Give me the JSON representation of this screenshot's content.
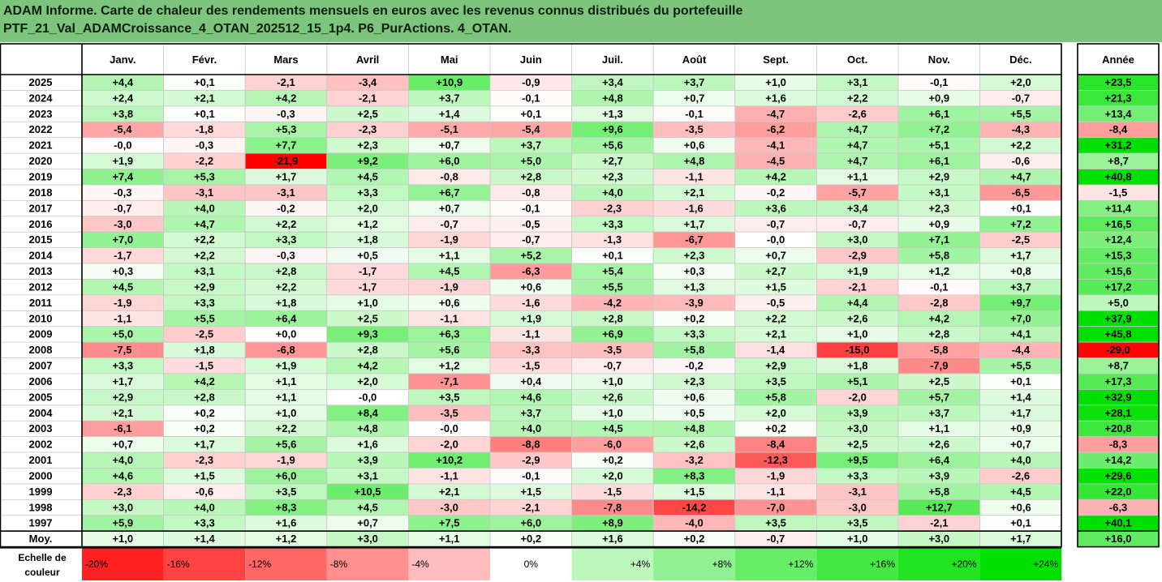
{
  "title": {
    "line1": "ADAM Informe. Carte de chaleur des rendements mensuels en euros avec les revenus connus distribués du portefeuille",
    "line2": "PTF_21_Val_ADAMCroissance_4_OTAN_202512_15_1p4. P6_PurActions. 4_OTAN."
  },
  "chart_data": {
    "type": "heatmap",
    "columns": [
      "Janv.",
      "Févr.",
      "Mars",
      "Avril",
      "Mai",
      "Juin",
      "Juil.",
      "Août",
      "Sept.",
      "Oct.",
      "Nov.",
      "Déc."
    ],
    "year_column": "Année",
    "rows": [
      {
        "label": "2025",
        "values": [
          "+4,4",
          "+0,1",
          "-2,1",
          "-3,4",
          "+10,9",
          "-0,9",
          "+3,4",
          "+3,7",
          "+1,0",
          "+3,1",
          "-0,1",
          "+2,0"
        ],
        "year": "+23,5"
      },
      {
        "label": "2024",
        "values": [
          "+2,4",
          "+2,1",
          "+4,2",
          "-2,1",
          "+3,7",
          "-0,1",
          "+4,8",
          "+0,7",
          "+1,6",
          "+2,2",
          "+0,9",
          "-0,7"
        ],
        "year": "+21,3"
      },
      {
        "label": "2023",
        "values": [
          "+3,8",
          "+0,1",
          "-0,3",
          "+2,5",
          "+1,4",
          "+0,1",
          "+1,3",
          "-0,1",
          "-4,7",
          "-2,6",
          "+6,1",
          "+5,5"
        ],
        "year": "+13,4"
      },
      {
        "label": "2022",
        "values": [
          "-5,4",
          "-1,8",
          "+5,3",
          "-2,3",
          "-5,1",
          "-5,4",
          "+9,6",
          "-3,5",
          "-6,2",
          "+4,7",
          "+7,2",
          "-4,3"
        ],
        "year": "-8,4"
      },
      {
        "label": "2021",
        "values": [
          "-0,0",
          "-0,3",
          "+7,7",
          "+2,3",
          "+0,7",
          "+3,7",
          "+5,6",
          "+0,6",
          "-4,1",
          "+4,7",
          "+5,1",
          "+2,2"
        ],
        "year": "+31,2"
      },
      {
        "label": "2020",
        "values": [
          "+1,9",
          "-2,2",
          "-21,9",
          "+9,2",
          "+6,0",
          "+5,0",
          "+2,7",
          "+4,8",
          "-4,5",
          "+4,7",
          "+6,1",
          "-0,6"
        ],
        "year": "+8,7"
      },
      {
        "label": "2019",
        "values": [
          "+7,4",
          "+5,3",
          "+1,7",
          "+4,5",
          "-0,8",
          "+2,8",
          "+2,3",
          "-1,1",
          "+4,2",
          "+1,1",
          "+2,9",
          "+4,7"
        ],
        "year": "+40,8"
      },
      {
        "label": "2018",
        "values": [
          "-0,3",
          "-3,1",
          "-3,1",
          "+3,3",
          "+6,7",
          "-0,8",
          "+4,0",
          "+2,1",
          "-0,2",
          "-5,7",
          "+3,1",
          "-6,5"
        ],
        "year": "-1,5"
      },
      {
        "label": "2017",
        "values": [
          "-0,7",
          "+4,0",
          "-0,2",
          "+2,0",
          "+0,7",
          "-0,1",
          "-2,3",
          "-1,6",
          "+3,6",
          "+3,4",
          "+2,3",
          "+0,1"
        ],
        "year": "+11,4"
      },
      {
        "label": "2016",
        "values": [
          "-3,0",
          "+4,7",
          "+2,2",
          "+1,2",
          "-0,7",
          "-0,5",
          "+3,3",
          "+1,7",
          "-0,7",
          "-0,7",
          "+0,9",
          "+7,2"
        ],
        "year": "+16,5"
      },
      {
        "label": "2015",
        "values": [
          "+7,0",
          "+2,2",
          "+3,3",
          "+1,8",
          "-1,9",
          "-0,7",
          "-1,3",
          "-6,7",
          "-0,0",
          "+3,0",
          "+7,1",
          "-2,5"
        ],
        "year": "+12,4"
      },
      {
        "label": "2014",
        "values": [
          "-1,7",
          "+2,2",
          "-0,3",
          "+0,5",
          "+1,1",
          "+5,2",
          "+0,1",
          "+2,3",
          "+0,7",
          "-2,9",
          "+5,8",
          "+1,7"
        ],
        "year": "+15,3"
      },
      {
        "label": "2013",
        "values": [
          "+0,3",
          "+3,1",
          "+2,8",
          "-1,7",
          "+4,5",
          "-6,3",
          "+5,4",
          "+0,3",
          "+2,7",
          "+1,9",
          "+1,2",
          "+0,8"
        ],
        "year": "+15,6"
      },
      {
        "label": "2012",
        "values": [
          "+4,5",
          "+2,9",
          "+2,2",
          "-1,7",
          "-1,9",
          "+0,6",
          "+5,5",
          "+1,3",
          "+1,5",
          "-2,1",
          "-0,1",
          "+3,7"
        ],
        "year": "+17,2"
      },
      {
        "label": "2011",
        "values": [
          "-1,9",
          "+3,3",
          "+1,8",
          "+1,0",
          "+0,6",
          "-1,6",
          "-4,2",
          "-3,9",
          "-0,5",
          "+4,4",
          "-2,8",
          "+9,7"
        ],
        "year": "+5,0"
      },
      {
        "label": "2010",
        "values": [
          "-1,1",
          "+5,5",
          "+6,4",
          "+2,5",
          "-1,1",
          "+1,9",
          "+2,8",
          "+0,2",
          "+2,2",
          "+2,6",
          "+4,2",
          "+7,0"
        ],
        "year": "+37,9"
      },
      {
        "label": "2009",
        "values": [
          "+5,0",
          "-2,5",
          "+0,0",
          "+9,3",
          "+6,3",
          "-1,1",
          "+6,9",
          "+3,3",
          "+2,1",
          "+1,0",
          "+2,8",
          "+4,1"
        ],
        "year": "+45,8"
      },
      {
        "label": "2008",
        "values": [
          "-7,5",
          "+1,8",
          "-6,8",
          "+2,8",
          "+5,6",
          "-3,3",
          "-3,5",
          "+5,8",
          "-1,4",
          "-15,0",
          "-5,8",
          "-4,4"
        ],
        "year": "-29,0"
      },
      {
        "label": "2007",
        "values": [
          "+3,3",
          "-1,5",
          "+1,9",
          "+4,2",
          "+1,2",
          "-1,5",
          "-0,7",
          "-0,2",
          "+2,9",
          "+1,8",
          "-7,9",
          "+5,5"
        ],
        "year": "+8,7"
      },
      {
        "label": "2006",
        "values": [
          "+1,7",
          "+4,2",
          "+1,1",
          "+2,0",
          "-7,1",
          "+0,4",
          "+1,0",
          "+2,3",
          "+3,5",
          "+5,1",
          "+2,5",
          "+0,1"
        ],
        "year": "+17,3"
      },
      {
        "label": "2005",
        "values": [
          "+2,9",
          "+2,8",
          "+1,1",
          "-0,0",
          "+3,5",
          "+4,6",
          "+2,6",
          "+0,6",
          "+5,8",
          "-2,0",
          "+5,7",
          "+1,4"
        ],
        "year": "+32,9"
      },
      {
        "label": "2004",
        "values": [
          "+2,1",
          "+0,2",
          "+1,0",
          "+8,4",
          "-3,5",
          "+3,7",
          "+1,0",
          "+0,5",
          "+2,0",
          "+3,9",
          "+3,7",
          "+1,7"
        ],
        "year": "+28,1"
      },
      {
        "label": "2003",
        "values": [
          "-6,1",
          "+0,2",
          "+2,2",
          "+4,8",
          "-0,0",
          "+4,0",
          "+4,5",
          "+4,8",
          "+0,2",
          "+3,0",
          "+1,1",
          "+0,9"
        ],
        "year": "+20,8"
      },
      {
        "label": "2002",
        "values": [
          "+0,7",
          "+1,7",
          "+5,6",
          "+1,6",
          "-2,0",
          "-8,8",
          "-6,0",
          "+2,6",
          "-8,4",
          "+2,5",
          "+2,6",
          "+0,7"
        ],
        "year": "-8,3"
      },
      {
        "label": "2001",
        "values": [
          "+4,0",
          "-2,3",
          "-1,9",
          "+3,9",
          "+10,2",
          "-2,9",
          "+0,2",
          "-3,2",
          "-12,3",
          "+9,5",
          "+6,4",
          "+4,0"
        ],
        "year": "+14,2"
      },
      {
        "label": "2000",
        "values": [
          "+4,6",
          "+1,5",
          "+6,0",
          "+3,1",
          "-1,1",
          "-0,1",
          "+2,0",
          "+8,3",
          "-1,9",
          "+3,3",
          "+3,9",
          "-2,6"
        ],
        "year": "+29,6"
      },
      {
        "label": "1999",
        "values": [
          "-2,3",
          "-0,6",
          "+3,5",
          "+10,5",
          "+2,1",
          "+1,5",
          "-1,5",
          "+1,5",
          "-1,1",
          "-3,1",
          "+5,8",
          "+4,5"
        ],
        "year": "+22,0"
      },
      {
        "label": "1998",
        "values": [
          "+3,0",
          "+4,0",
          "+8,3",
          "+4,5",
          "-3,0",
          "-2,1",
          "-7,8",
          "-14,2",
          "-7,0",
          "-3,0",
          "+12,7",
          "+0,6"
        ],
        "year": "-6,3"
      },
      {
        "label": "1997",
        "values": [
          "+5,9",
          "+3,3",
          "+1,6",
          "+0,7",
          "+7,5",
          "+6,0",
          "+8,9",
          "-4,0",
          "+3,5",
          "+3,5",
          "-2,1",
          "+0,1"
        ],
        "year": "+40,1"
      }
    ],
    "average": {
      "label": "Moy.",
      "values": [
        "+1,0",
        "+1,4",
        "+1,2",
        "+3,0",
        "+1,1",
        "+0,2",
        "+1,6",
        "+0,2",
        "-0,7",
        "+1,0",
        "+3,0",
        "+1,7"
      ],
      "year": "+16,0"
    },
    "scale": {
      "label": "Echelle de couleur",
      "stops": [
        "-20%",
        "-16%",
        "-12%",
        "-8%",
        "-4%",
        "0%",
        "+4%",
        "+8%",
        "+12%",
        "+16%",
        "+20%",
        "+24%"
      ],
      "stop_values": [
        -20,
        -16,
        -12,
        -8,
        -4,
        0,
        4,
        8,
        12,
        16,
        20,
        24
      ]
    },
    "colors": {
      "negative": "#ff0000",
      "positive": "#00e000",
      "neutral": "#ffffff",
      "grid": "#c8c8c8",
      "border": "#000000",
      "title_bg": "#7dc47d"
    }
  }
}
